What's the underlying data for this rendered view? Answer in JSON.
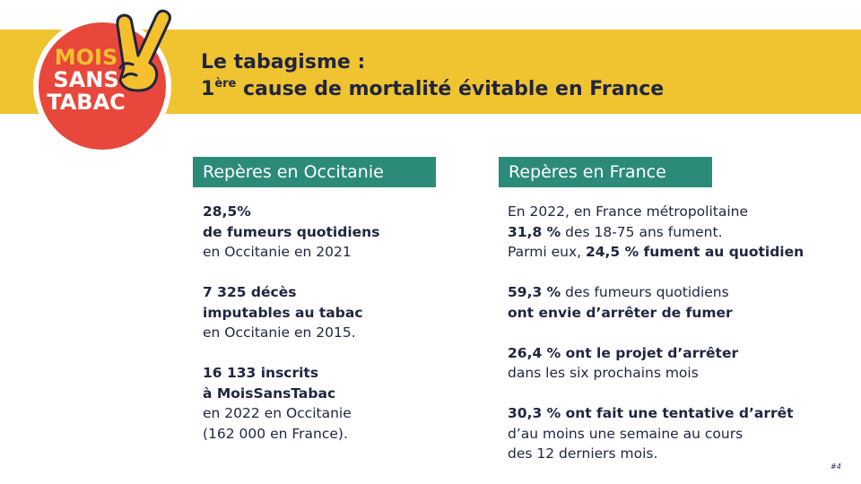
{
  "header": {
    "title_line1": "Le tabagisme :",
    "title_line2_num": "1",
    "title_line2_sup": "ère",
    "title_line2_rest": " cause de mortalité évitable en France"
  },
  "logo": {
    "word1": "MOIS",
    "word2": "SANS",
    "word3": "TABAC",
    "icon": "victory-hand-icon"
  },
  "occitanie": {
    "heading": "Repères en Occitanie",
    "stats": [
      {
        "l1": "28,5%",
        "l2": "de fumeurs quotidiens",
        "l3": "en Occitanie en 2021"
      },
      {
        "l1": "7 325 décès",
        "l2": "imputables au tabac",
        "l3": "en Occitanie en 2015."
      },
      {
        "l1": "16 133 inscrits",
        "l2": "à MoisSansTabac",
        "l3": "en 2022 en Occitanie",
        "l4": "(162 000 en France)."
      }
    ]
  },
  "france": {
    "heading": "Repères en France",
    "s1": {
      "l1": "En 2022, en France métropolitaine",
      "l2_b": "31,8 %",
      "l2_r": " des 18-75 ans fument.",
      "l3_r": "Parmi eux, ",
      "l3_b": "24,5 % fument au quotidien"
    },
    "s2": {
      "l1_b": "59,3 %",
      "l1_r": " des fumeurs quotidiens",
      "l2_b": "ont envie d’arrêter de fumer"
    },
    "s3": {
      "l1_b": "26,4 % ont le projet d’arrêter",
      "l2": "dans les six prochains mois"
    },
    "s4": {
      "l1_b": "30,3 % ont fait une tentative d’arrêt",
      "l2": "d’au moins une semaine au cours",
      "l3": "des 12 derniers mois."
    }
  },
  "page_number": "#4",
  "colors": {
    "banner": "#f0c330",
    "teal": "#2b8a78",
    "navy": "#1f2541",
    "logo_red": "#e8473b"
  }
}
